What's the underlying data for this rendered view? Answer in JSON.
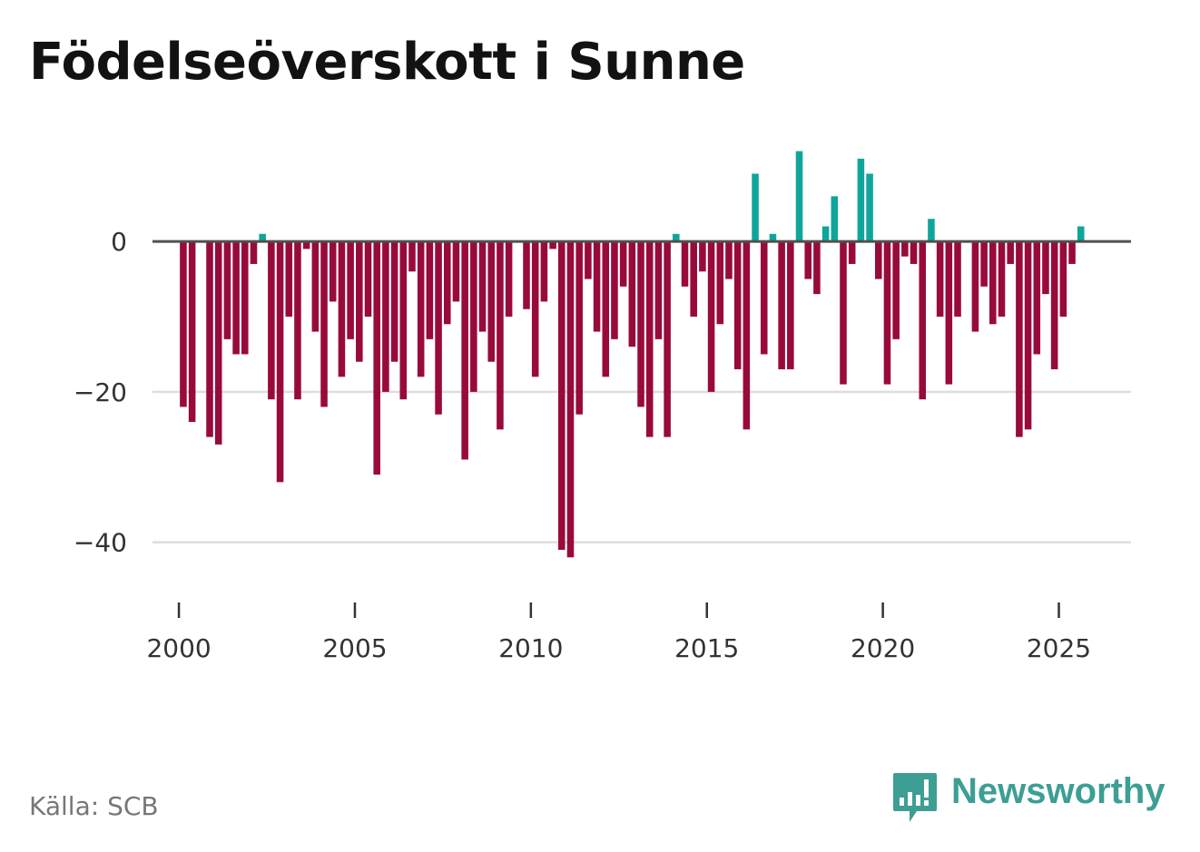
{
  "title": "Födelseöverskott i Sunne",
  "source": "Källa: SCB",
  "brand": {
    "name": "Newsworthy",
    "icon": "newsworthy-logo-icon"
  },
  "colors": {
    "positive": "#0fa59a",
    "negative": "#990a3c",
    "zero_line": "#505050",
    "grid": "#dddddd",
    "tick": "#333333"
  },
  "chart_data": {
    "type": "bar",
    "title": "Födelseöverskott i Sunne",
    "xlabel": "",
    "ylabel": "",
    "ylim": [
      -48,
      14
    ],
    "xlim": [
      1999.25,
      2027.05
    ],
    "y_ticks": [
      0,
      -20,
      -40
    ],
    "y_tick_labels": [
      "0",
      "−20",
      "−40"
    ],
    "x_ticks": [
      2000,
      2005,
      2010,
      2015,
      2020,
      2025
    ],
    "x_tick_labels": [
      "2000",
      "2005",
      "2010",
      "2015",
      "2020",
      "2025"
    ],
    "frequency": "quarterly",
    "start": "2000 Q1",
    "series": [
      {
        "name": "Födelseöverskott",
        "values": [
          -22,
          -24,
          0,
          -26,
          -27,
          -13,
          -15,
          -15,
          -3,
          1,
          -21,
          -32,
          -10,
          -21,
          -1,
          -12,
          -22,
          -8,
          -18,
          -13,
          -16,
          -10,
          -31,
          -20,
          -16,
          -21,
          -4,
          -18,
          -13,
          -23,
          -11,
          -8,
          -29,
          -20,
          -12,
          -16,
          -25,
          -10,
          0,
          -9,
          -18,
          -8,
          -1,
          -41,
          -42,
          -23,
          -5,
          -12,
          -18,
          -13,
          -6,
          -14,
          -22,
          -26,
          -13,
          -26,
          1,
          -6,
          -10,
          -4,
          -20,
          -11,
          -5,
          -17,
          -25,
          9,
          -15,
          1,
          -17,
          -17,
          12,
          -5,
          -7,
          2,
          6,
          -19,
          -3,
          11,
          9,
          -5,
          -19,
          -13,
          -2,
          -3,
          -21,
          3,
          -10,
          -19,
          -10,
          0,
          -12,
          -6,
          -11,
          -10,
          -3,
          -26,
          -25,
          -15,
          -7,
          -17,
          -10,
          -3,
          2
        ]
      }
    ]
  }
}
